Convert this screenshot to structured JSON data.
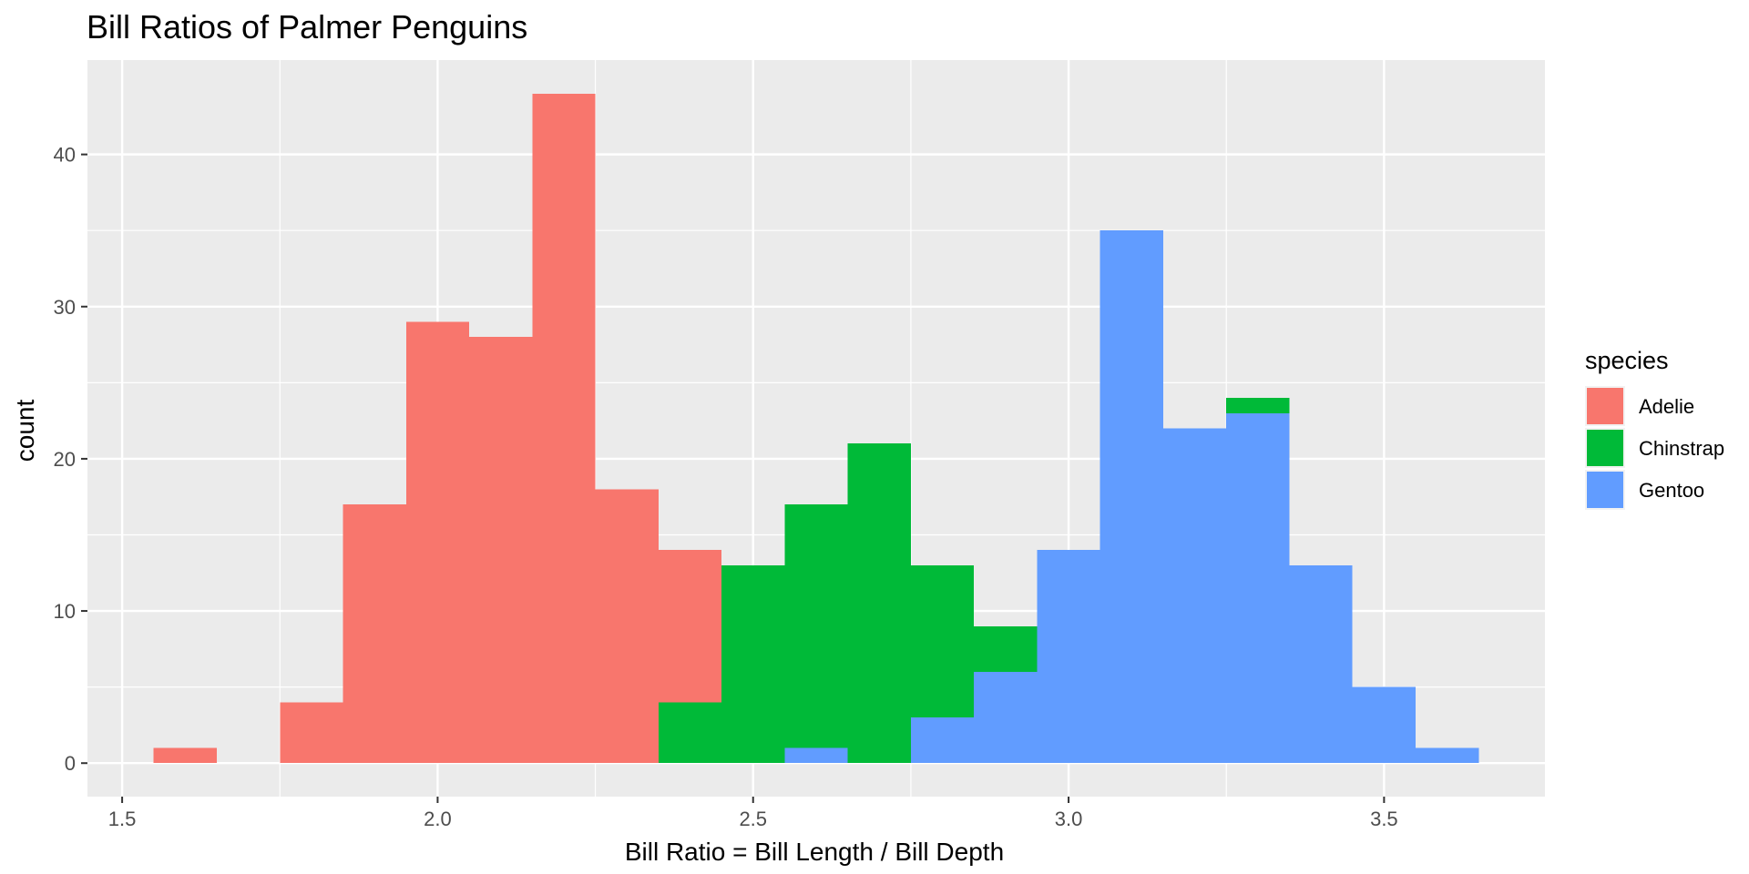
{
  "chart_data": {
    "type": "bar",
    "stacked": true,
    "title": "Bill Ratios of Palmer Penguins",
    "xlabel": "Bill Ratio = Bill Length / Bill Depth",
    "ylabel": "count",
    "xlim": [
      1.445,
      3.755
    ],
    "ylim": [
      -2.2,
      46.2
    ],
    "xticks": [
      1.5,
      2.0,
      2.5,
      3.0,
      3.5
    ],
    "xtick_labels": [
      "1.5",
      "2.0",
      "2.5",
      "3.0",
      "3.5"
    ],
    "yticks": [
      0,
      10,
      20,
      30,
      40
    ],
    "ytick_labels": [
      "0",
      "10",
      "20",
      "30",
      "40"
    ],
    "grid": true,
    "legend_position": "right",
    "legend_title": "species",
    "bin_width": 0.1,
    "x": [
      1.6,
      1.7,
      1.8,
      1.9,
      2.0,
      2.1,
      2.2,
      2.3,
      2.4,
      2.5,
      2.6,
      2.7,
      2.8,
      2.9,
      3.0,
      3.1,
      3.2,
      3.3,
      3.4,
      3.5,
      3.6
    ],
    "series": [
      {
        "name": "Adelie",
        "color": "#F8766D",
        "values": [
          1,
          0,
          4,
          17,
          29,
          28,
          44,
          18,
          10,
          0,
          0,
          0,
          0,
          0,
          0,
          0,
          0,
          0,
          0,
          0,
          0
        ]
      },
      {
        "name": "Chinstrap",
        "color": "#00BA38",
        "values": [
          0,
          0,
          0,
          0,
          0,
          0,
          0,
          0,
          4,
          13,
          16,
          21,
          10,
          3,
          0,
          0,
          0,
          1,
          0,
          0,
          0
        ]
      },
      {
        "name": "Gentoo",
        "color": "#619CFF",
        "values": [
          0,
          0,
          0,
          0,
          0,
          0,
          0,
          0,
          0,
          0,
          1,
          0,
          3,
          6,
          14,
          35,
          22,
          23,
          13,
          5,
          1
        ]
      }
    ]
  }
}
